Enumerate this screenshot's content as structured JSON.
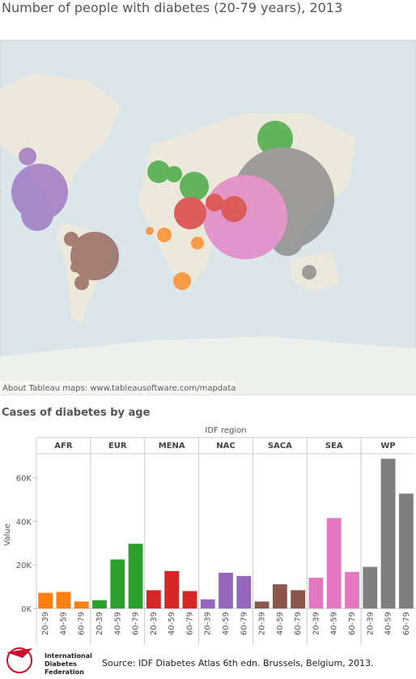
{
  "header": {
    "title": "Number of people with diabetes (20-79 years), 2013"
  },
  "map": {
    "attribution": "About Tableau maps: www.tableausoftware.com/mapdata"
  },
  "chart_data": {
    "type": "bar",
    "title": "Cases of diabetes by age",
    "facet_label": "IDF region",
    "y_label": "Value",
    "categories": [
      "20-39",
      "40-59",
      "60-79"
    ],
    "series": [
      {
        "name": "AFR",
        "color": "#ff7f0e",
        "values": [
          7200,
          7600,
          3200
        ]
      },
      {
        "name": "EUR",
        "color": "#2ca02c",
        "values": [
          3800,
          22500,
          29700
        ]
      },
      {
        "name": "MENA",
        "color": "#d62728",
        "values": [
          8400,
          17200,
          8000
        ]
      },
      {
        "name": "NAC",
        "color": "#9467bd",
        "values": [
          4200,
          16400,
          14900
        ]
      },
      {
        "name": "SACA",
        "color": "#8c564b",
        "values": [
          3200,
          11100,
          8400
        ]
      },
      {
        "name": "SEA",
        "color": "#e377c2",
        "values": [
          14100,
          41500,
          16800
        ]
      },
      {
        "name": "WP",
        "color": "#7f7f7f",
        "values": [
          19100,
          68700,
          52700
        ]
      }
    ],
    "ylim": [
      0,
      71000
    ],
    "yticks": [
      {
        "value": 0,
        "label": "0K"
      },
      {
        "value": 20000,
        "label": "20K"
      },
      {
        "value": 40000,
        "label": "40K"
      },
      {
        "value": 60000,
        "label": "60K"
      }
    ]
  },
  "footer": {
    "logo": [
      "International",
      "Diabetes",
      "Federation"
    ],
    "source": "Source: IDF Diabetes Atlas 6th edn. Brussels, Belgium, 2013."
  }
}
